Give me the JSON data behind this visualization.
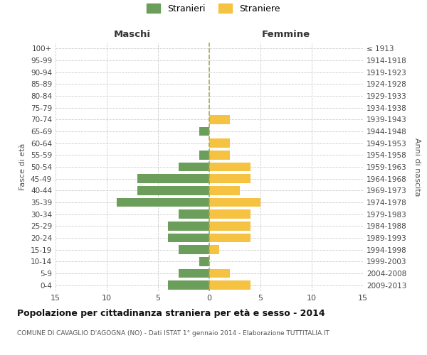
{
  "age_groups": [
    "100+",
    "95-99",
    "90-94",
    "85-89",
    "80-84",
    "75-79",
    "70-74",
    "65-69",
    "60-64",
    "55-59",
    "50-54",
    "45-49",
    "40-44",
    "35-39",
    "30-34",
    "25-29",
    "20-24",
    "15-19",
    "10-14",
    "5-9",
    "0-4"
  ],
  "birth_years": [
    "≤ 1913",
    "1914-1918",
    "1919-1923",
    "1924-1928",
    "1929-1933",
    "1934-1938",
    "1939-1943",
    "1944-1948",
    "1949-1953",
    "1954-1958",
    "1959-1963",
    "1964-1968",
    "1969-1973",
    "1974-1978",
    "1979-1983",
    "1984-1988",
    "1989-1993",
    "1994-1998",
    "1999-2003",
    "2004-2008",
    "2009-2013"
  ],
  "maschi": [
    0,
    0,
    0,
    0,
    0,
    0,
    0,
    1,
    0,
    1,
    3,
    7,
    7,
    9,
    3,
    4,
    4,
    3,
    1,
    3,
    4
  ],
  "femmine": [
    0,
    0,
    0,
    0,
    0,
    0,
    2,
    0,
    2,
    2,
    4,
    4,
    3,
    5,
    4,
    4,
    4,
    1,
    0,
    2,
    4
  ],
  "maschi_color": "#6a9e5a",
  "femmine_color": "#f5c242",
  "background_color": "#ffffff",
  "grid_color": "#cccccc",
  "title": "Popolazione per cittadinanza straniera per età e sesso - 2014",
  "subtitle": "COMUNE DI CAVAGLIO D'AGOGNA (NO) - Dati ISTAT 1° gennaio 2014 - Elaborazione TUTTITALIA.IT",
  "xlabel_left": "Maschi",
  "xlabel_right": "Femmine",
  "ylabel_left": "Fasce di età",
  "ylabel_right": "Anni di nascita",
  "legend_maschi": "Stranieri",
  "legend_femmine": "Straniere",
  "xlim": 15,
  "dashed_line_color": "#aaa855"
}
